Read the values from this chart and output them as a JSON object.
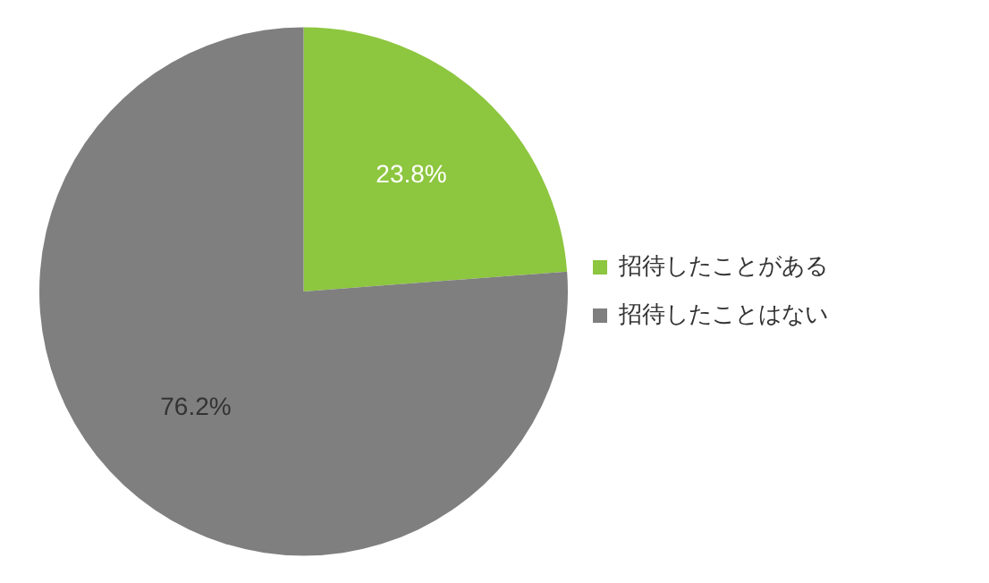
{
  "chart_data": {
    "type": "pie",
    "categories": [
      "招待したことがある",
      "招待したことはない"
    ],
    "values": [
      23.8,
      76.2
    ],
    "colors": [
      "#8dc63f",
      "#7f7f7f"
    ],
    "legend": "right",
    "value_labels": [
      "23.8%",
      "76.2%"
    ]
  }
}
